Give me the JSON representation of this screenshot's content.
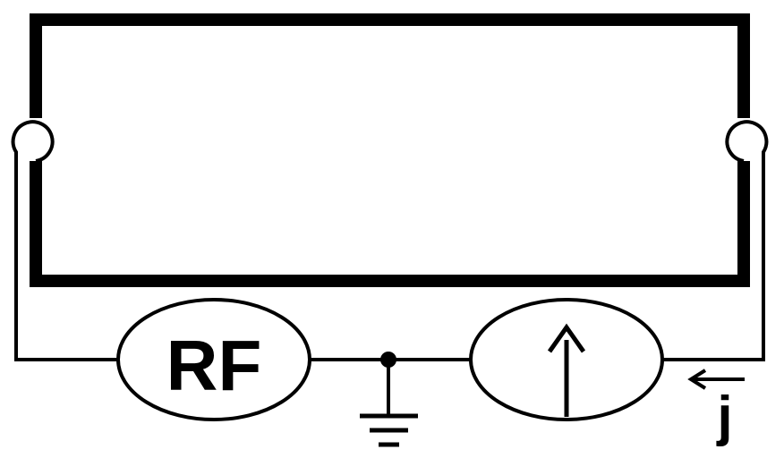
{
  "labels": {
    "rf": "RF",
    "current": "j"
  },
  "colors": {
    "ink": "#000000",
    "background": "#ffffff"
  },
  "icons": {
    "ammeter": "up-arrow-meter-icon",
    "ground": "ground-icon",
    "current_direction": "left-arrow-icon"
  }
}
